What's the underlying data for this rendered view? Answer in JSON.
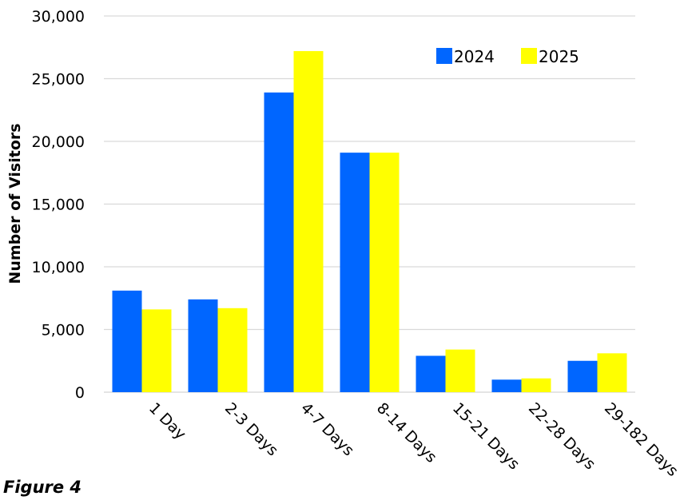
{
  "caption": "Figure 4",
  "chart_data": {
    "type": "bar",
    "title": "",
    "xlabel": "",
    "ylabel": "Number of Visitors",
    "categories": [
      "1 Day",
      "2-3 Days",
      "4-7 Days",
      "8-14 Days",
      "15-21 Days",
      "22-28 Days",
      "29-182 Days"
    ],
    "series": [
      {
        "name": "2024",
        "color": "#0066FF",
        "values": [
          8100,
          7400,
          23900,
          19100,
          2900,
          1000,
          2500
        ]
      },
      {
        "name": "2025",
        "color": "#FFFF00",
        "values": [
          6600,
          6700,
          27200,
          19100,
          3400,
          1100,
          3100
        ]
      }
    ],
    "ylim": [
      0,
      30000
    ],
    "yticks": [
      0,
      5000,
      10000,
      15000,
      20000,
      25000,
      30000
    ],
    "ytick_labels": [
      "0",
      "5,000",
      "10,000",
      "15,000",
      "20,000",
      "25,000",
      "30,000"
    ],
    "grid": true,
    "legend_position": "top-right"
  }
}
